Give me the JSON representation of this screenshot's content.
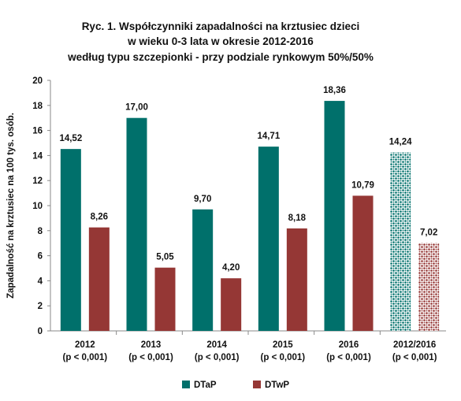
{
  "chart_data": {
    "type": "bar",
    "title_lines": [
      "Ryc. 1. Współczynniki zapadalności na krztusiec dzieci",
      "w wieku 0-3 lata w okresie 2012-2016",
      "według typu szczepionki - przy podziale rynkowym 50%/50%"
    ],
    "ylabel": "Zapadalność na krztusiec na 100 tys. osób.",
    "xlabel": "",
    "ylim": [
      0,
      20
    ],
    "yticks": [
      "0",
      "2",
      "4",
      "6",
      "8",
      "10",
      "12",
      "14",
      "16",
      "18",
      "20"
    ],
    "categories": [
      {
        "year": "2012",
        "pvalue": "(p < 0,001)"
      },
      {
        "year": "2013",
        "pvalue": "(p < 0,001)"
      },
      {
        "year": "2014",
        "pvalue": "(p < 0,001)"
      },
      {
        "year": "2015",
        "pvalue": "(p < 0,001)"
      },
      {
        "year": "2016",
        "pvalue": "(p < 0,001)"
      },
      {
        "year": "2012/2016",
        "pvalue": "(p < 0,001)"
      }
    ],
    "series": [
      {
        "name": "DTaP",
        "color": "#00706b",
        "values": [
          14.52,
          17.0,
          9.7,
          14.71,
          18.36,
          14.24
        ],
        "labels": [
          "14,52",
          "17,00",
          "9,70",
          "14,71",
          "18,36",
          "14,24"
        ]
      },
      {
        "name": "DTwP",
        "color": "#953735",
        "values": [
          8.26,
          5.05,
          4.2,
          8.18,
          10.79,
          7.02
        ],
        "labels": [
          "8,26",
          "5,05",
          "4,20",
          "8,18",
          "10,79",
          "7,02"
        ]
      }
    ],
    "patterned_category_index": 5,
    "legend_position": "bottom",
    "grid": false
  }
}
